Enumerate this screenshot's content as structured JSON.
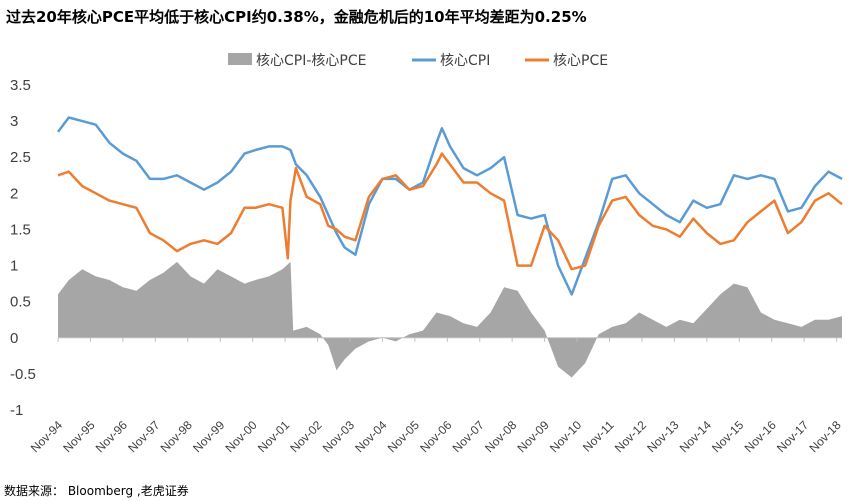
{
  "title": "过去20年核心PCE平均低于核心CPI约0.38%，金融危机后的10年平均差距为0.25%",
  "source": "数据来源：  Bloomberg ,老虎证券",
  "chart_data": {
    "type": "line",
    "title": "过去20年核心PCE平均低于核心CPI约0.38%，金融危机后的10年平均差距为0.25%",
    "ylim": [
      -1,
      3.5
    ],
    "yticks": [
      "3.5",
      "3",
      "2.5",
      "2",
      "1.5",
      "1",
      "0.5",
      "0",
      "-0.5",
      "-1"
    ],
    "x_tick_labels": [
      "Nov-94",
      "Nov-95",
      "Nov-96",
      "Nov-97",
      "Nov-98",
      "Nov-99",
      "Nov-00",
      "Nov-01",
      "Nov-02",
      "Nov-03",
      "Nov-04",
      "Nov-05",
      "Nov-06",
      "Nov-07",
      "Nov-08",
      "Nov-09",
      "Nov-10",
      "Nov-11",
      "Nov-12",
      "Nov-13",
      "Nov-14",
      "Nov-15",
      "Nov-16",
      "Nov-17",
      "Nov-18"
    ],
    "x_range": [
      "1994-11",
      "2019-01"
    ],
    "legend_position": "top-center",
    "grid": false,
    "colors": {
      "diff": "#a6a6a6",
      "cpi": "#5b9bd5",
      "pce": "#ed7d31"
    },
    "series": [
      {
        "name": "核心CPI-核心PCE",
        "type": "area",
        "points": [
          [
            "1994-11",
            0.6
          ],
          [
            "1995-03",
            0.8
          ],
          [
            "1995-08",
            0.95
          ],
          [
            "1996-01",
            0.85
          ],
          [
            "1996-06",
            0.8
          ],
          [
            "1996-11",
            0.7
          ],
          [
            "1997-04",
            0.65
          ],
          [
            "1997-09",
            0.8
          ],
          [
            "1998-02",
            0.9
          ],
          [
            "1998-07",
            1.05
          ],
          [
            "1998-12",
            0.85
          ],
          [
            "1999-05",
            0.75
          ],
          [
            "1999-10",
            0.95
          ],
          [
            "2000-03",
            0.85
          ],
          [
            "2000-08",
            0.75
          ],
          [
            "2000-12",
            0.8
          ],
          [
            "2001-05",
            0.85
          ],
          [
            "2001-10",
            0.95
          ],
          [
            "2002-01",
            1.05
          ],
          [
            "2002-02",
            0.1
          ],
          [
            "2002-07",
            0.15
          ],
          [
            "2002-12",
            0.05
          ],
          [
            "2003-03",
            -0.1
          ],
          [
            "2003-06",
            -0.45
          ],
          [
            "2003-09",
            -0.3
          ],
          [
            "2004-01",
            -0.15
          ],
          [
            "2004-06",
            -0.05
          ],
          [
            "2004-11",
            0.0
          ],
          [
            "2005-04",
            -0.05
          ],
          [
            "2005-09",
            0.05
          ],
          [
            "2006-02",
            0.1
          ],
          [
            "2006-07",
            0.35
          ],
          [
            "2006-12",
            0.3
          ],
          [
            "2007-05",
            0.2
          ],
          [
            "2007-10",
            0.15
          ],
          [
            "2008-03",
            0.35
          ],
          [
            "2008-08",
            0.7
          ],
          [
            "2009-01",
            0.65
          ],
          [
            "2009-06",
            0.35
          ],
          [
            "2009-11",
            0.1
          ],
          [
            "2010-04",
            -0.4
          ],
          [
            "2010-09",
            -0.55
          ],
          [
            "2011-02",
            -0.35
          ],
          [
            "2011-07",
            0.05
          ],
          [
            "2011-12",
            0.15
          ],
          [
            "2012-05",
            0.2
          ],
          [
            "2012-10",
            0.35
          ],
          [
            "2013-03",
            0.25
          ],
          [
            "2013-08",
            0.15
          ],
          [
            "2014-01",
            0.25
          ],
          [
            "2014-06",
            0.2
          ],
          [
            "2014-11",
            0.4
          ],
          [
            "2015-04",
            0.6
          ],
          [
            "2015-09",
            0.75
          ],
          [
            "2016-02",
            0.7
          ],
          [
            "2016-07",
            0.35
          ],
          [
            "2016-12",
            0.25
          ],
          [
            "2017-05",
            0.2
          ],
          [
            "2017-10",
            0.15
          ],
          [
            "2018-03",
            0.25
          ],
          [
            "2018-08",
            0.25
          ],
          [
            "2019-01",
            0.3
          ]
        ]
      },
      {
        "name": "核心CPI",
        "type": "line",
        "points": [
          [
            "1994-11",
            2.85
          ],
          [
            "1995-03",
            3.05
          ],
          [
            "1995-08",
            3.0
          ],
          [
            "1996-01",
            2.95
          ],
          [
            "1996-06",
            2.7
          ],
          [
            "1996-11",
            2.55
          ],
          [
            "1997-04",
            2.45
          ],
          [
            "1997-09",
            2.2
          ],
          [
            "1998-02",
            2.2
          ],
          [
            "1998-07",
            2.25
          ],
          [
            "1998-12",
            2.15
          ],
          [
            "1999-05",
            2.05
          ],
          [
            "1999-10",
            2.15
          ],
          [
            "2000-03",
            2.3
          ],
          [
            "2000-08",
            2.55
          ],
          [
            "2000-12",
            2.6
          ],
          [
            "2001-05",
            2.65
          ],
          [
            "2001-10",
            2.65
          ],
          [
            "2002-01",
            2.6
          ],
          [
            "2002-03",
            2.4
          ],
          [
            "2002-07",
            2.25
          ],
          [
            "2002-12",
            1.95
          ],
          [
            "2003-03",
            1.7
          ],
          [
            "2003-06",
            1.45
          ],
          [
            "2003-09",
            1.25
          ],
          [
            "2004-01",
            1.15
          ],
          [
            "2004-06",
            1.85
          ],
          [
            "2004-11",
            2.2
          ],
          [
            "2005-04",
            2.2
          ],
          [
            "2005-09",
            2.05
          ],
          [
            "2006-02",
            2.15
          ],
          [
            "2006-07",
            2.7
          ],
          [
            "2006-09",
            2.9
          ],
          [
            "2006-12",
            2.65
          ],
          [
            "2007-05",
            2.35
          ],
          [
            "2007-10",
            2.25
          ],
          [
            "2008-03",
            2.35
          ],
          [
            "2008-08",
            2.5
          ],
          [
            "2009-01",
            1.7
          ],
          [
            "2009-06",
            1.65
          ],
          [
            "2009-11",
            1.7
          ],
          [
            "2010-04",
            1.0
          ],
          [
            "2010-09",
            0.6
          ],
          [
            "2011-02",
            1.1
          ],
          [
            "2011-07",
            1.6
          ],
          [
            "2011-12",
            2.2
          ],
          [
            "2012-05",
            2.25
          ],
          [
            "2012-10",
            2.0
          ],
          [
            "2013-03",
            1.85
          ],
          [
            "2013-08",
            1.7
          ],
          [
            "2014-01",
            1.6
          ],
          [
            "2014-06",
            1.9
          ],
          [
            "2014-11",
            1.8
          ],
          [
            "2015-04",
            1.85
          ],
          [
            "2015-09",
            2.25
          ],
          [
            "2016-02",
            2.2
          ],
          [
            "2016-07",
            2.25
          ],
          [
            "2016-12",
            2.2
          ],
          [
            "2017-05",
            1.75
          ],
          [
            "2017-10",
            1.8
          ],
          [
            "2018-03",
            2.1
          ],
          [
            "2018-08",
            2.3
          ],
          [
            "2019-01",
            2.2
          ]
        ]
      },
      {
        "name": "核心PCE",
        "type": "line",
        "points": [
          [
            "1994-11",
            2.25
          ],
          [
            "1995-03",
            2.3
          ],
          [
            "1995-08",
            2.1
          ],
          [
            "1996-01",
            2.0
          ],
          [
            "1996-06",
            1.9
          ],
          [
            "1996-11",
            1.85
          ],
          [
            "1997-04",
            1.8
          ],
          [
            "1997-09",
            1.45
          ],
          [
            "1998-02",
            1.35
          ],
          [
            "1998-07",
            1.2
          ],
          [
            "1998-12",
            1.3
          ],
          [
            "1999-05",
            1.35
          ],
          [
            "1999-10",
            1.3
          ],
          [
            "2000-03",
            1.45
          ],
          [
            "2000-08",
            1.8
          ],
          [
            "2000-12",
            1.8
          ],
          [
            "2001-05",
            1.85
          ],
          [
            "2001-10",
            1.8
          ],
          [
            "2001-12",
            1.1
          ],
          [
            "2002-01",
            1.9
          ],
          [
            "2002-03",
            2.35
          ],
          [
            "2002-07",
            1.95
          ],
          [
            "2002-12",
            1.85
          ],
          [
            "2003-03",
            1.55
          ],
          [
            "2003-06",
            1.5
          ],
          [
            "2003-09",
            1.4
          ],
          [
            "2004-01",
            1.35
          ],
          [
            "2004-06",
            1.95
          ],
          [
            "2004-11",
            2.2
          ],
          [
            "2005-04",
            2.25
          ],
          [
            "2005-09",
            2.05
          ],
          [
            "2006-02",
            2.1
          ],
          [
            "2006-07",
            2.4
          ],
          [
            "2006-09",
            2.55
          ],
          [
            "2006-12",
            2.4
          ],
          [
            "2007-05",
            2.15
          ],
          [
            "2007-10",
            2.15
          ],
          [
            "2008-03",
            2.0
          ],
          [
            "2008-08",
            1.9
          ],
          [
            "2009-01",
            1.0
          ],
          [
            "2009-06",
            1.0
          ],
          [
            "2009-11",
            1.55
          ],
          [
            "2010-04",
            1.35
          ],
          [
            "2010-09",
            0.95
          ],
          [
            "2011-02",
            1.0
          ],
          [
            "2011-07",
            1.55
          ],
          [
            "2011-12",
            1.9
          ],
          [
            "2012-05",
            1.95
          ],
          [
            "2012-10",
            1.7
          ],
          [
            "2013-03",
            1.55
          ],
          [
            "2013-08",
            1.5
          ],
          [
            "2014-01",
            1.4
          ],
          [
            "2014-06",
            1.65
          ],
          [
            "2014-11",
            1.45
          ],
          [
            "2015-04",
            1.3
          ],
          [
            "2015-09",
            1.35
          ],
          [
            "2016-02",
            1.6
          ],
          [
            "2016-07",
            1.75
          ],
          [
            "2016-12",
            1.9
          ],
          [
            "2017-05",
            1.45
          ],
          [
            "2017-10",
            1.6
          ],
          [
            "2018-03",
            1.9
          ],
          [
            "2018-08",
            2.0
          ],
          [
            "2019-01",
            1.85
          ]
        ]
      }
    ]
  }
}
